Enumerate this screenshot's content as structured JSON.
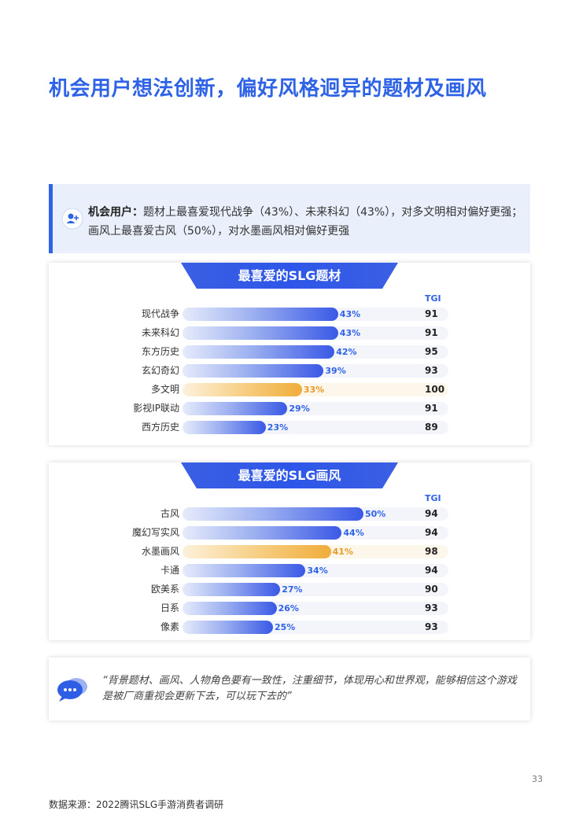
{
  "title": "机会用户想法创新，偏好风格迥异的题材及画风",
  "summary": {
    "label": "机会用户：",
    "text": "题材上最喜爱现代战争（43%）、未来科幻（43%），对多文明相对偏好更强；画风上最喜爱古风（50%），对水墨画风相对偏好更强",
    "icon": "user-add-icon"
  },
  "chart_data": [
    {
      "type": "bar",
      "orientation": "horizontal",
      "title": "最喜爱的SLG题材",
      "tgi_label": "TGI",
      "max_value": 50,
      "highlight_color": "#f0ad3a",
      "bar_color": "#3a59e6",
      "categories": [
        "现代战争",
        "未来科幻",
        "东方历史",
        "玄幻奇幻",
        "多文明",
        "影视IP联动",
        "西方历史"
      ],
      "values": [
        43,
        43,
        42,
        39,
        33,
        29,
        23
      ],
      "value_labels": [
        "43%",
        "43%",
        "42%",
        "39%",
        "33%",
        "29%",
        "23%"
      ],
      "tgi": [
        "91",
        "91",
        "95",
        "93",
        "100",
        "91",
        "89"
      ],
      "highlight": [
        false,
        false,
        false,
        false,
        true,
        false,
        false
      ]
    },
    {
      "type": "bar",
      "orientation": "horizontal",
      "title": "最喜爱的SLG画风",
      "tgi_label": "TGI",
      "max_value": 50,
      "highlight_color": "#f0ad3a",
      "bar_color": "#3a59e6",
      "categories": [
        "古风",
        "魔幻写实风",
        "水墨画风",
        "卡通",
        "欧美系",
        "日系",
        "像素"
      ],
      "values": [
        50,
        44,
        41,
        34,
        27,
        26,
        25
      ],
      "value_labels": [
        "50%",
        "44%",
        "41%",
        "34%",
        "27%",
        "26%",
        "25%"
      ],
      "tgi": [
        "94",
        "94",
        "98",
        "94",
        "90",
        "93",
        "93"
      ],
      "highlight": [
        false,
        false,
        true,
        false,
        false,
        false,
        false
      ]
    }
  ],
  "quote": {
    "text": "“背景题材、画风、人物角色要有一致性，注重细节，体现用心和世界观，能够相信这个游戏是被厂商重视会更新下去，可以玩下去的”",
    "icon": "chat-bubble-icon"
  },
  "page_number": "33",
  "source": "数据来源：2022腾讯SLG手游消费者调研"
}
